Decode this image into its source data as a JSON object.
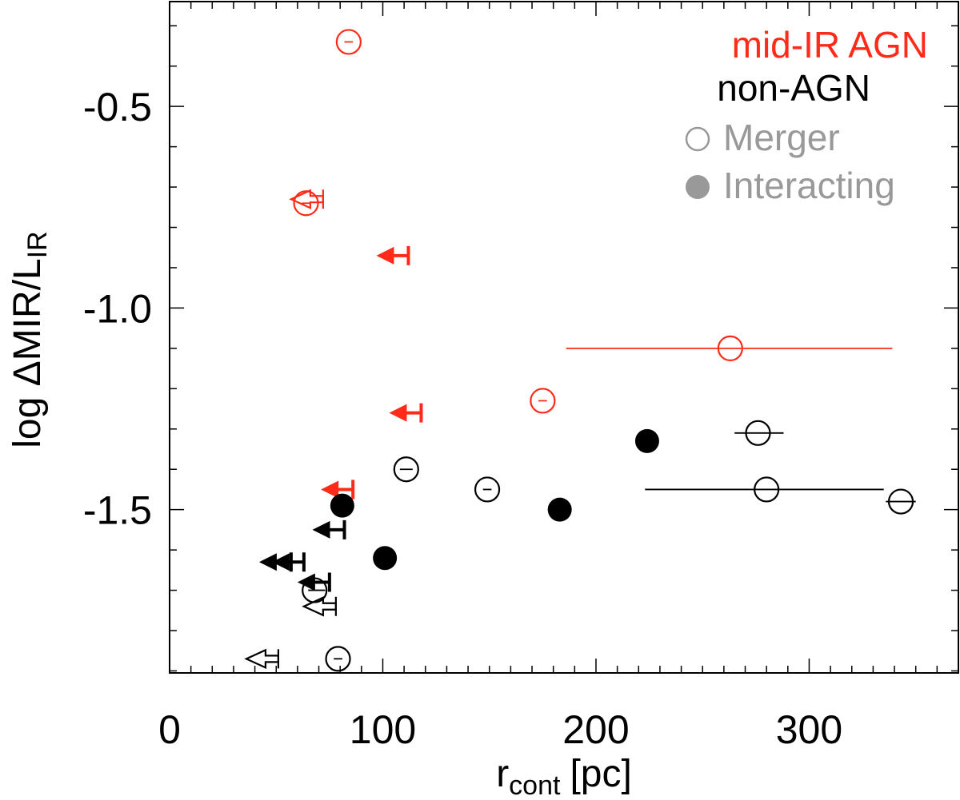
{
  "chart_data": {
    "type": "scatter",
    "xlabel": "r",
    "xlabel_sub": "cont",
    "xlabel_unit": "[pc]",
    "ylabel_prefix": "log ΔMIR/L",
    "ylabel_sub": "IR",
    "xlim": [
      0,
      370
    ],
    "ylim": [
      -1.905,
      -0.24
    ],
    "xticks": [
      0,
      100,
      200,
      300
    ],
    "xtick_labels": [
      "0",
      "100",
      "200",
      "300"
    ],
    "yticks": [
      -0.5,
      -1.0,
      -1.5
    ],
    "ytick_labels": [
      "-0.5",
      "-1.0",
      "-1.5"
    ],
    "x_minor_step": 10,
    "y_minor_step": 0.1,
    "grid": false,
    "legend": {
      "placement": "top-right",
      "entries": [
        {
          "label": "mid-IR AGN",
          "color": "#ff2a17"
        },
        {
          "label": "non-AGN",
          "color": "#000000"
        },
        {
          "label": "Merger",
          "color": "#999999",
          "marker": "open-circle"
        },
        {
          "label": "Interacting",
          "color": "#999999",
          "marker": "filled-circle"
        }
      ]
    },
    "series": [
      {
        "name": "mid-IR AGN",
        "color": "#ff2a17",
        "points": [
          {
            "x": 84,
            "y": -0.34,
            "xerr": [
              82,
              86
            ],
            "marker": "open"
          },
          {
            "x": 64,
            "y": -0.74,
            "xerr": [
              62,
              66
            ],
            "marker": "open"
          },
          {
            "x": 175,
            "y": -1.23,
            "xerr": [
              173,
              177
            ],
            "marker": "open"
          },
          {
            "x": 263,
            "y": -1.1,
            "xerr": [
              186,
              339
            ],
            "marker": "open"
          }
        ],
        "upper_limits": [
          {
            "x": 72,
            "y": -0.73,
            "marker": "open"
          },
          {
            "x": 112,
            "y": -0.87,
            "marker": "filled"
          },
          {
            "x": 118,
            "y": -1.26,
            "marker": "filled"
          },
          {
            "x": 86,
            "y": -1.45,
            "marker": "filled"
          }
        ]
      },
      {
        "name": "non-AGN",
        "color": "#000000",
        "points": [
          {
            "x": 111,
            "y": -1.4,
            "xerr": [
              108,
              114
            ],
            "marker": "open"
          },
          {
            "x": 149,
            "y": -1.45,
            "xerr": [
              147,
              151
            ],
            "marker": "open"
          },
          {
            "x": 276,
            "y": -1.31,
            "xerr": [
              265,
              288
            ],
            "marker": "open"
          },
          {
            "x": 280,
            "y": -1.45,
            "xerr": [
              223,
              335
            ],
            "marker": "open"
          },
          {
            "x": 343,
            "y": -1.48,
            "xerr": [
              336,
              350
            ],
            "marker": "open"
          },
          {
            "x": 68,
            "y": -1.7,
            "xerr": [
              65,
              73
            ],
            "marker": "open"
          },
          {
            "x": 79,
            "y": -1.87,
            "xerr": [
              77,
              81
            ],
            "marker": "open"
          },
          {
            "x": 81,
            "y": -1.49,
            "xerr": [
              80,
              82
            ],
            "marker": "filled"
          },
          {
            "x": 101,
            "y": -1.62,
            "xerr": [
              100,
              102
            ],
            "marker": "filled"
          },
          {
            "x": 183,
            "y": -1.5,
            "xerr": [
              178,
              188
            ],
            "marker": "filled"
          },
          {
            "x": 224,
            "y": -1.33,
            "xerr": [
              223,
              225
            ],
            "marker": "filled"
          }
        ],
        "upper_limits": [
          {
            "x": 82,
            "y": -1.55,
            "marker": "filled"
          },
          {
            "x": 63,
            "y": -1.63,
            "marker": "filled"
          },
          {
            "x": 57,
            "y": -1.63,
            "marker": "filled"
          },
          {
            "x": 75,
            "y": -1.68,
            "marker": "filled"
          },
          {
            "x": 78,
            "y": -1.74,
            "marker": "open"
          },
          {
            "x": 51,
            "y": -1.87,
            "marker": "open"
          }
        ]
      }
    ]
  }
}
